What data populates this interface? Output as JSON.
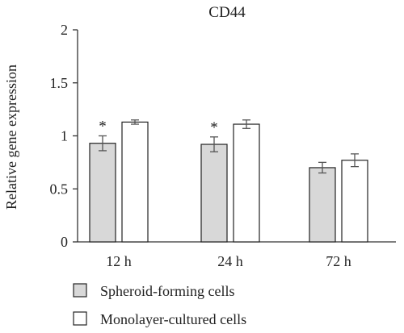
{
  "chart_data": {
    "type": "bar",
    "title": "CD44",
    "ylabel": "Relative gene expression",
    "xlabel": "",
    "categories": [
      "12 h",
      "24 h",
      "72 h"
    ],
    "ylim": [
      0,
      2
    ],
    "yticks": [
      0,
      0.5,
      1,
      1.5,
      2
    ],
    "ytick_labels": [
      "0",
      "0.5",
      "1",
      "1.5",
      "2"
    ],
    "series": [
      {
        "name": "Spheroid-forming cells",
        "values": [
          0.93,
          0.92,
          0.7
        ],
        "errors": [
          0.07,
          0.07,
          0.05
        ],
        "annotations": [
          "*",
          "*",
          ""
        ],
        "color": "#d8d8d8"
      },
      {
        "name": "Monolayer-cultured cells",
        "values": [
          1.13,
          1.11,
          0.77
        ],
        "errors": [
          0.02,
          0.04,
          0.06
        ],
        "annotations": [
          "",
          "",
          ""
        ],
        "color": "#ffffff"
      }
    ],
    "legend_position": "bottom-left",
    "grid": false
  }
}
